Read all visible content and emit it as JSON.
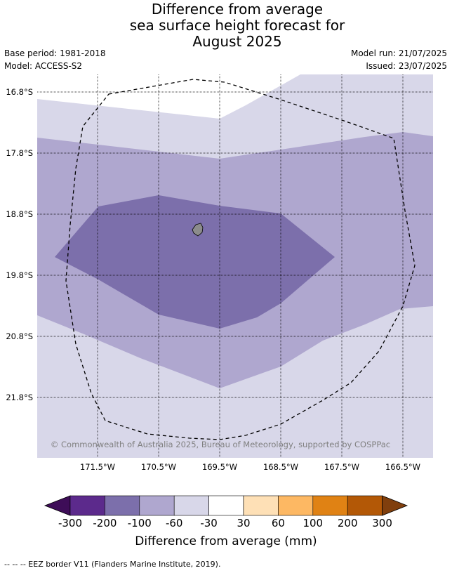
{
  "title": {
    "line1": "Difference from average",
    "line2": "sea surface height forecast for",
    "line3": "August 2025"
  },
  "meta": {
    "base_period": "Base period: 1981-2018",
    "model": "Model: ACCESS-S2",
    "model_run": "Model run: 21/07/2025",
    "issued": "Issued: 23/07/2025"
  },
  "map": {
    "lat_labels": [
      "16.8°S",
      "17.8°S",
      "18.8°S",
      "19.8°S",
      "20.8°S",
      "21.8°S"
    ],
    "lon_labels": [
      "171.5°W",
      "170.5°W",
      "169.5°W",
      "168.5°W",
      "167.5°W",
      "166.5°W"
    ],
    "copyright": "© Commonwealth of Australia 2025, Bureau of Meteorology, supported by COSPPac",
    "colors": {
      "lt_-100": "#7c6fab",
      "lt_-60": "#afa7cf",
      "lt_-30": "#d8d7e9",
      "island": "#8c8c8c"
    }
  },
  "colorbar": {
    "title": "Difference from average (mm)",
    "tick_labels": [
      "-300",
      "-200",
      "-100",
      "-60",
      "-30",
      "30",
      "60",
      "100",
      "200",
      "300"
    ],
    "colors": [
      "#3e0d58",
      "#5c2a8c",
      "#7c6fab",
      "#afa7cf",
      "#d8d7e9",
      "#ffffff",
      "#fee0b6",
      "#fdb863",
      "#e08214",
      "#b35806",
      "#803f0d"
    ]
  },
  "footnote": "--  --  -- EEZ border V11 (Flanders Marine Institute, 2019)."
}
